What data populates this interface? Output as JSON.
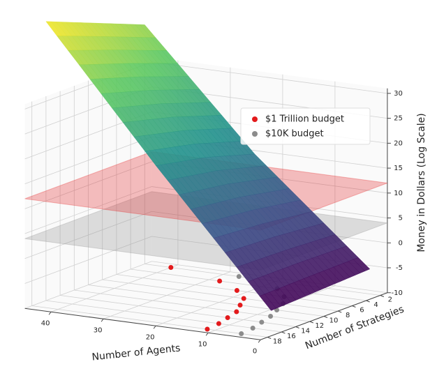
{
  "chart_data": {
    "type": "surface3d",
    "x_label": "Number of Agents",
    "y_label": "Number of Strategies",
    "z_label": "Money in Dollars (Log Scale)",
    "xlim": [
      0,
      45
    ],
    "xticks": [
      0,
      10,
      20,
      30,
      40
    ],
    "ylim": [
      1,
      19
    ],
    "yticks": [
      2,
      4,
      6,
      8,
      10,
      12,
      14,
      16,
      18
    ],
    "zlim": [
      -10,
      31
    ],
    "zticks": [
      -10,
      -5,
      0,
      5,
      10,
      15,
      20,
      25,
      30
    ],
    "grid": true,
    "surface": {
      "x": [
        2,
        24,
        45
      ],
      "y": [
        2,
        9,
        16
      ],
      "z": [
        [
          -5,
          -5.5,
          -6
        ],
        [
          15,
          18,
          20
        ],
        [
          38,
          42,
          46
        ]
      ]
    },
    "strategies": [
      2,
      4,
      6,
      8,
      10,
      12,
      14,
      16,
      18
    ],
    "series": [
      {
        "name": "$1 Trillion budget",
        "color": "#e31a1c",
        "plane_z": 12,
        "values": [
          40,
          28,
          22,
          18,
          16,
          14,
          13,
          12,
          11.5
        ]
      },
      {
        "name": "$10K budget",
        "color": "#8c8c8c",
        "plane_z": 4,
        "values": [
          27,
          17,
          13,
          10.5,
          9,
          7.5,
          6.5,
          5.5,
          5
        ]
      }
    ],
    "legend": "upper right"
  }
}
